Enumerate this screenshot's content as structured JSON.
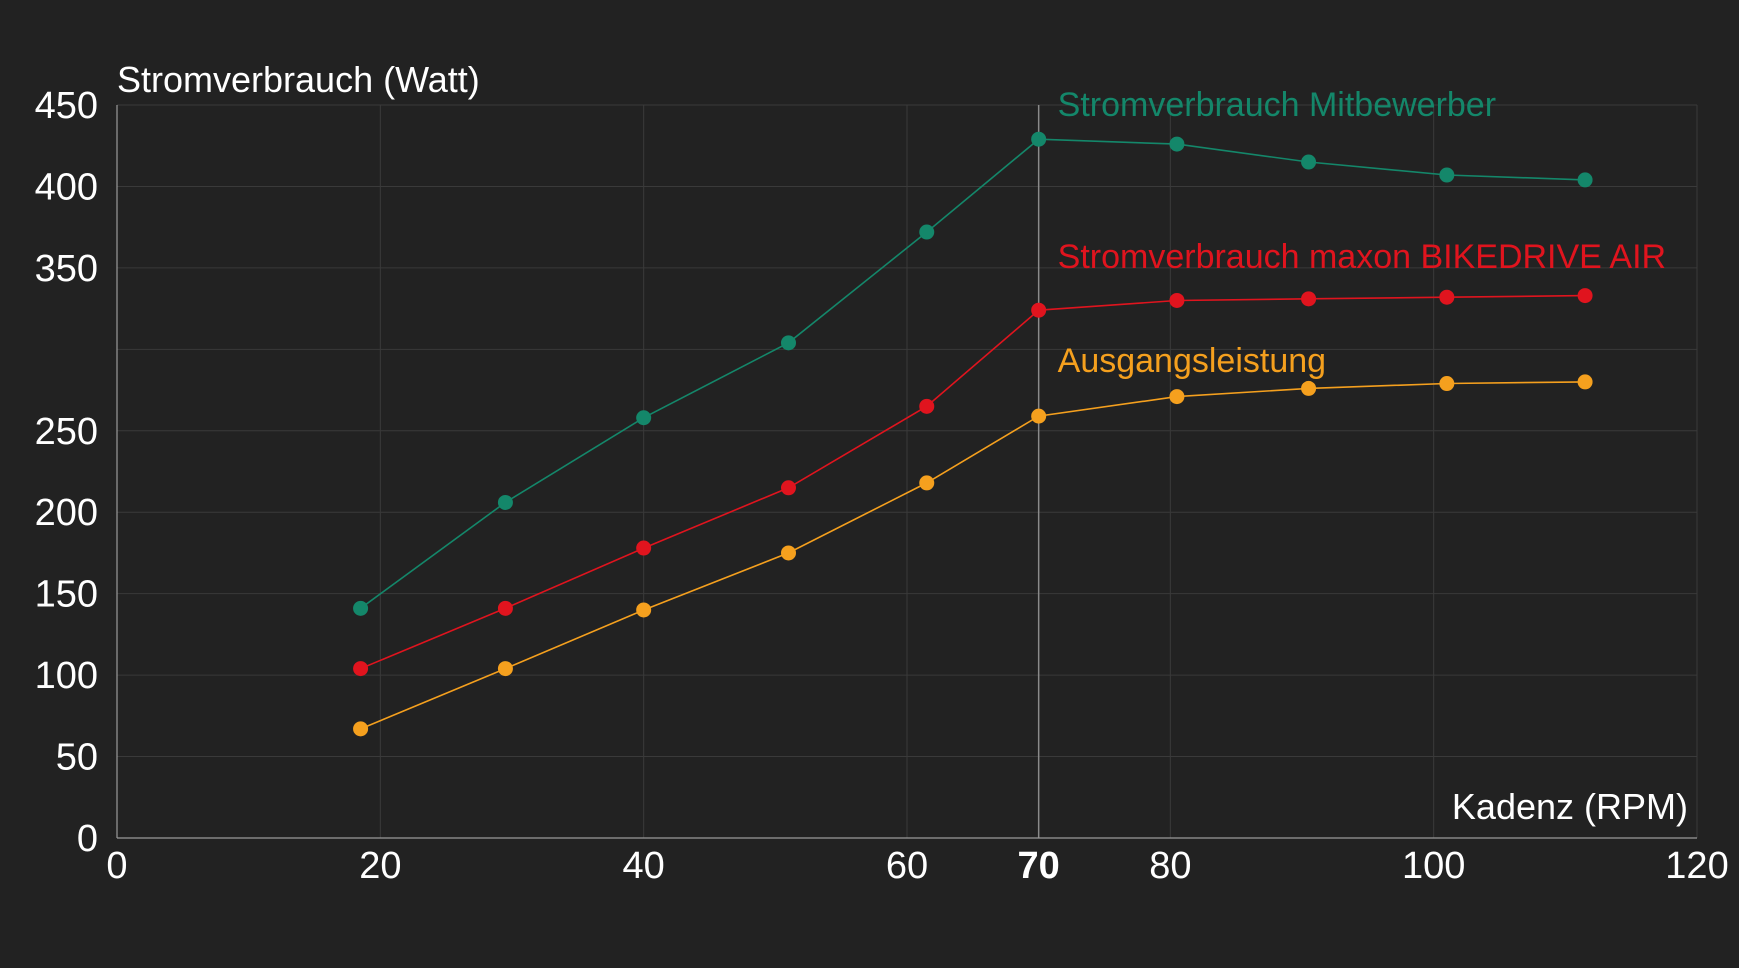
{
  "colors": {
    "background": "#222222",
    "text": "#ffffff",
    "grid": "#3a3a3a"
  },
  "chart_data": {
    "type": "line",
    "ylabel": "Stromverbrauch (Watt)",
    "xlabel": "Kadenz (RPM)",
    "xlim": [
      0,
      120
    ],
    "ylim": [
      0,
      450
    ],
    "x_ticks": [
      0,
      20,
      40,
      60,
      70,
      80,
      100,
      120
    ],
    "y_ticks": [
      0,
      50,
      100,
      150,
      200,
      250,
      350,
      400,
      450
    ],
    "highlight_x": 70,
    "grid": true,
    "series": [
      {
        "name": "Stromverbrauch Mitbewerber",
        "color": "#14876a",
        "points": [
          [
            18.5,
            141
          ],
          [
            29.5,
            206
          ],
          [
            40,
            258
          ],
          [
            51,
            304
          ],
          [
            61.5,
            372
          ],
          [
            70,
            429
          ],
          [
            80.5,
            426
          ],
          [
            90.5,
            415
          ],
          [
            101,
            407
          ],
          [
            111.5,
            404
          ]
        ]
      },
      {
        "name": "Stromverbrauch maxon BIKEDRIVE AIR",
        "color": "#e0141e",
        "points": [
          [
            18.5,
            104
          ],
          [
            29.5,
            141
          ],
          [
            40,
            178
          ],
          [
            51,
            215
          ],
          [
            61.5,
            265
          ],
          [
            70,
            324
          ],
          [
            80.5,
            330
          ],
          [
            90.5,
            331
          ],
          [
            101,
            332
          ],
          [
            111.5,
            333
          ]
        ]
      },
      {
        "name": "Ausgangsleistung",
        "color": "#f5a01e",
        "points": [
          [
            18.5,
            67
          ],
          [
            29.5,
            104
          ],
          [
            40,
            140
          ],
          [
            51,
            175
          ],
          [
            61.5,
            218
          ],
          [
            70,
            259
          ],
          [
            80.5,
            271
          ],
          [
            90.5,
            276
          ],
          [
            101,
            279
          ],
          [
            111.5,
            280
          ]
        ]
      }
    ]
  }
}
